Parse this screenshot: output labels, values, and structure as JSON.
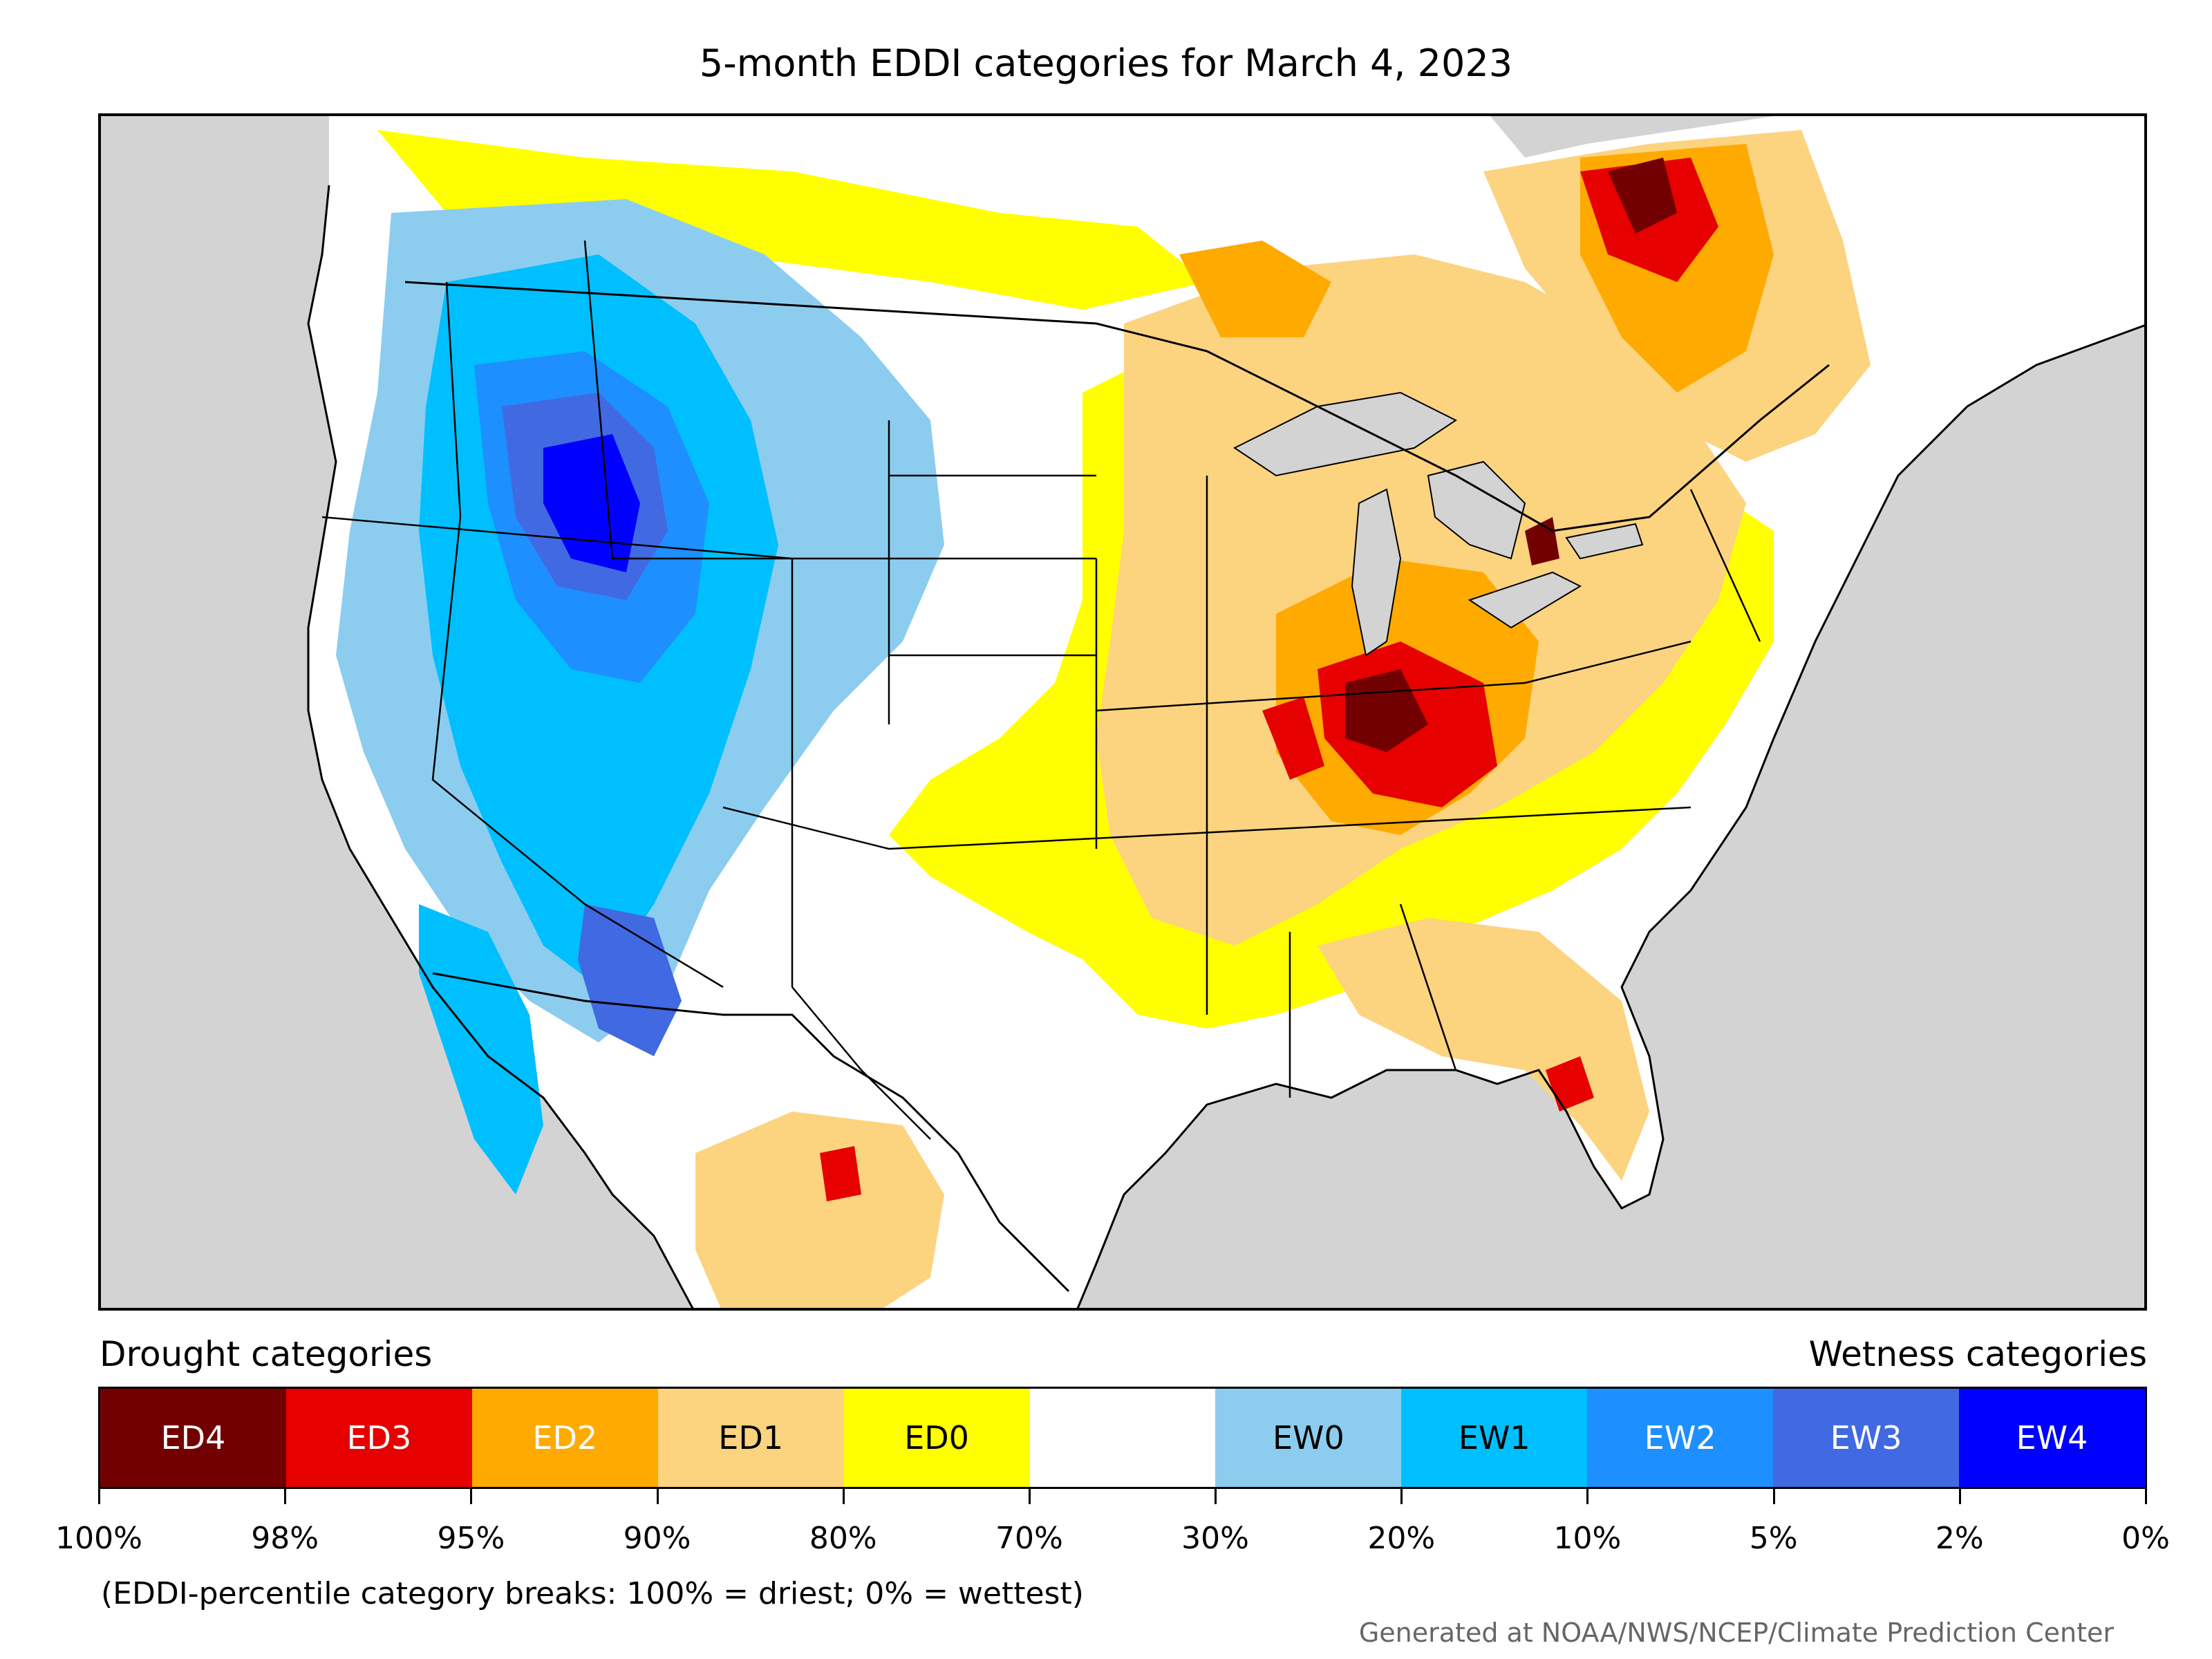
{
  "title": "5-month EDDI categories for March 4, 2023",
  "legend": {
    "drought_heading": "Drought categories",
    "wetness_heading": "Wetness categories",
    "categories": [
      {
        "label": "ED4",
        "color": "#730000",
        "text_color": "#ffffff"
      },
      {
        "label": "ED3",
        "color": "#e60000",
        "text_color": "#ffffff"
      },
      {
        "label": "ED2",
        "color": "#ffaa00",
        "text_color": "#ffffff"
      },
      {
        "label": "ED1",
        "color": "#fcd37f",
        "text_color": "#000000"
      },
      {
        "label": "ED0",
        "color": "#ffff00",
        "text_color": "#000000"
      },
      {
        "label": "",
        "color": "#ffffff",
        "text_color": "#000000"
      },
      {
        "label": "EW0",
        "color": "#8ccdef",
        "text_color": "#000000"
      },
      {
        "label": "EW1",
        "color": "#00bfff",
        "text_color": "#000000"
      },
      {
        "label": "EW2",
        "color": "#1e8fff",
        "text_color": "#ffffff"
      },
      {
        "label": "EW3",
        "color": "#4169e1",
        "text_color": "#ffffff"
      },
      {
        "label": "EW4",
        "color": "#0000ff",
        "text_color": "#ffffff"
      }
    ],
    "tick_labels": [
      "100%",
      "98%",
      "95%",
      "90%",
      "80%",
      "70%",
      "30%",
      "20%",
      "10%",
      "5%",
      "2%",
      "0%"
    ]
  },
  "note": "(EDDI-percentile category breaks: 100% = driest; 0% = wettest)",
  "credit": "Generated at NOAA/NWS/NCEP/Climate Prediction Center",
  "map_colors": {
    "land": "#ffffff",
    "water": "#d3d3d3",
    "border": "#000000"
  }
}
